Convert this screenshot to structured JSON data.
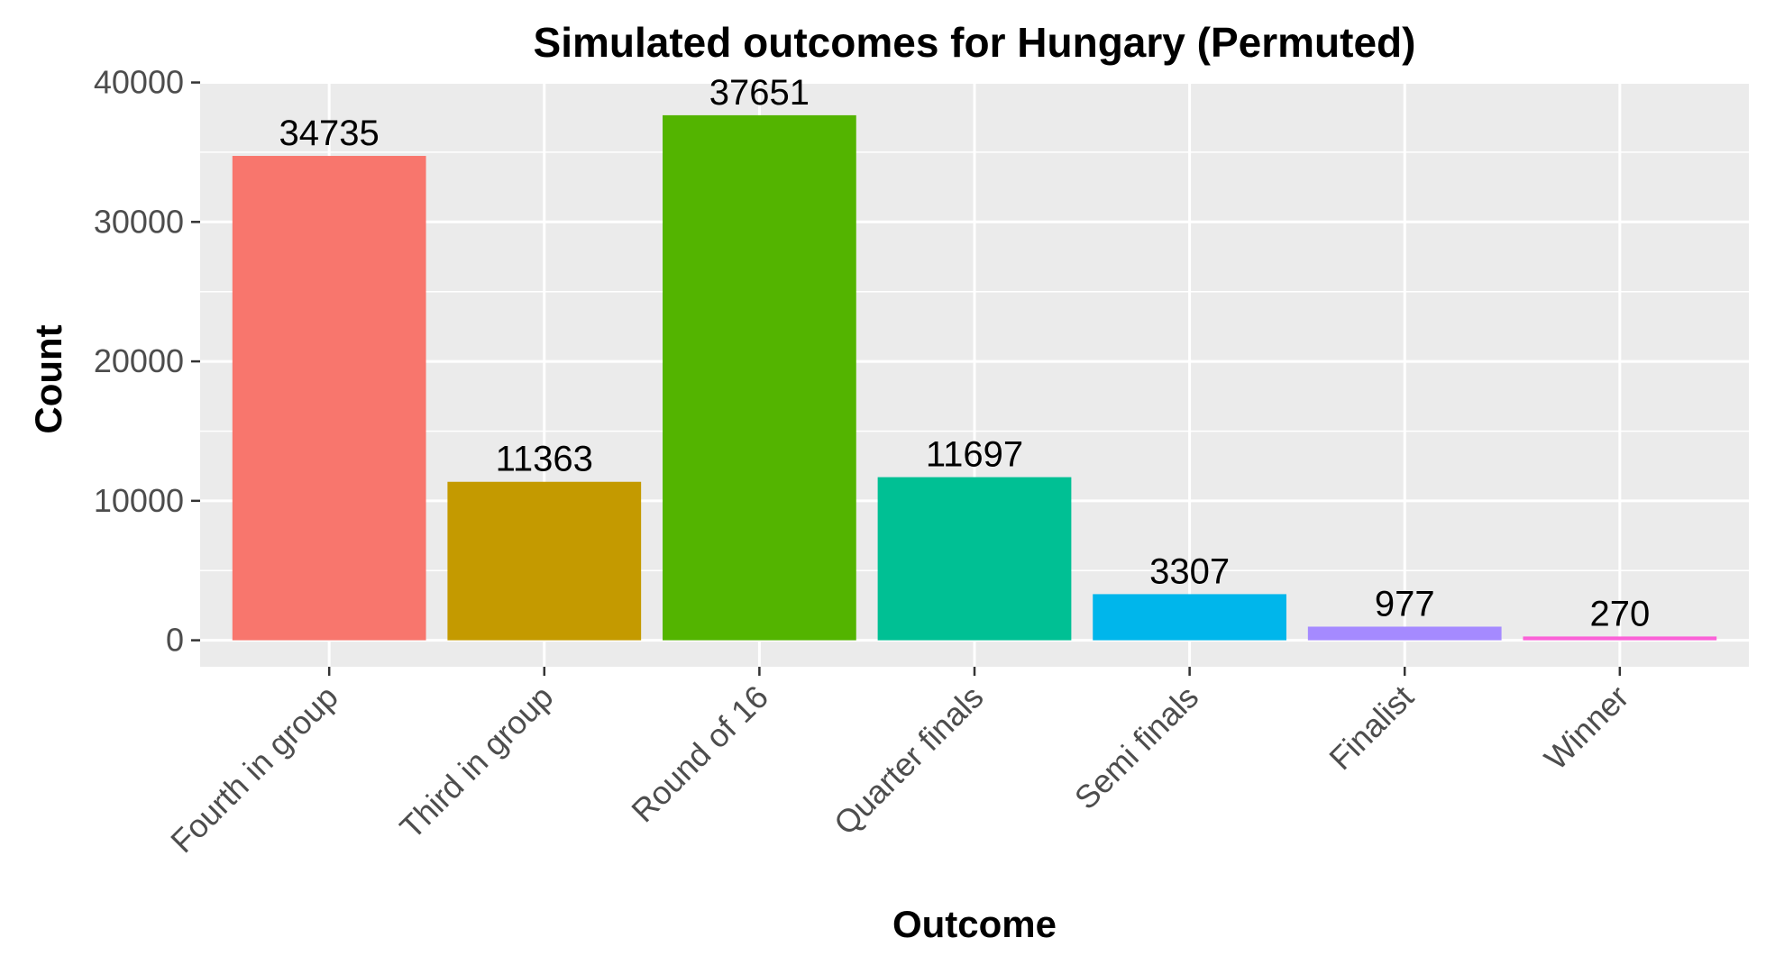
{
  "chart_data": {
    "type": "bar",
    "title": "Simulated outcomes for Hungary (Permuted)",
    "xlabel": "Outcome",
    "ylabel": "Count",
    "categories": [
      "Fourth in group",
      "Third in group",
      "Round of 16",
      "Quarter finals",
      "Semi finals",
      "Finalist",
      "Winner"
    ],
    "values": [
      34735,
      11363,
      37651,
      11697,
      3307,
      977,
      270
    ],
    "data_labels": [
      "34735",
      "11363",
      "37651",
      "11697",
      "3307",
      "977",
      "270"
    ],
    "colors": [
      "#F8766D",
      "#C49A00",
      "#53B400",
      "#00C094",
      "#00B6EB",
      "#A58AFF",
      "#FB61D7"
    ],
    "yticks": [
      0,
      10000,
      20000,
      30000,
      40000
    ],
    "ytick_labels": [
      "0",
      "10000",
      "20000",
      "30000",
      "40000"
    ],
    "ylim": [
      -1900,
      40100
    ],
    "grid": true,
    "legend": "none",
    "panel_background": "#EBEBEB",
    "grid_color": "#FFFFFF"
  }
}
